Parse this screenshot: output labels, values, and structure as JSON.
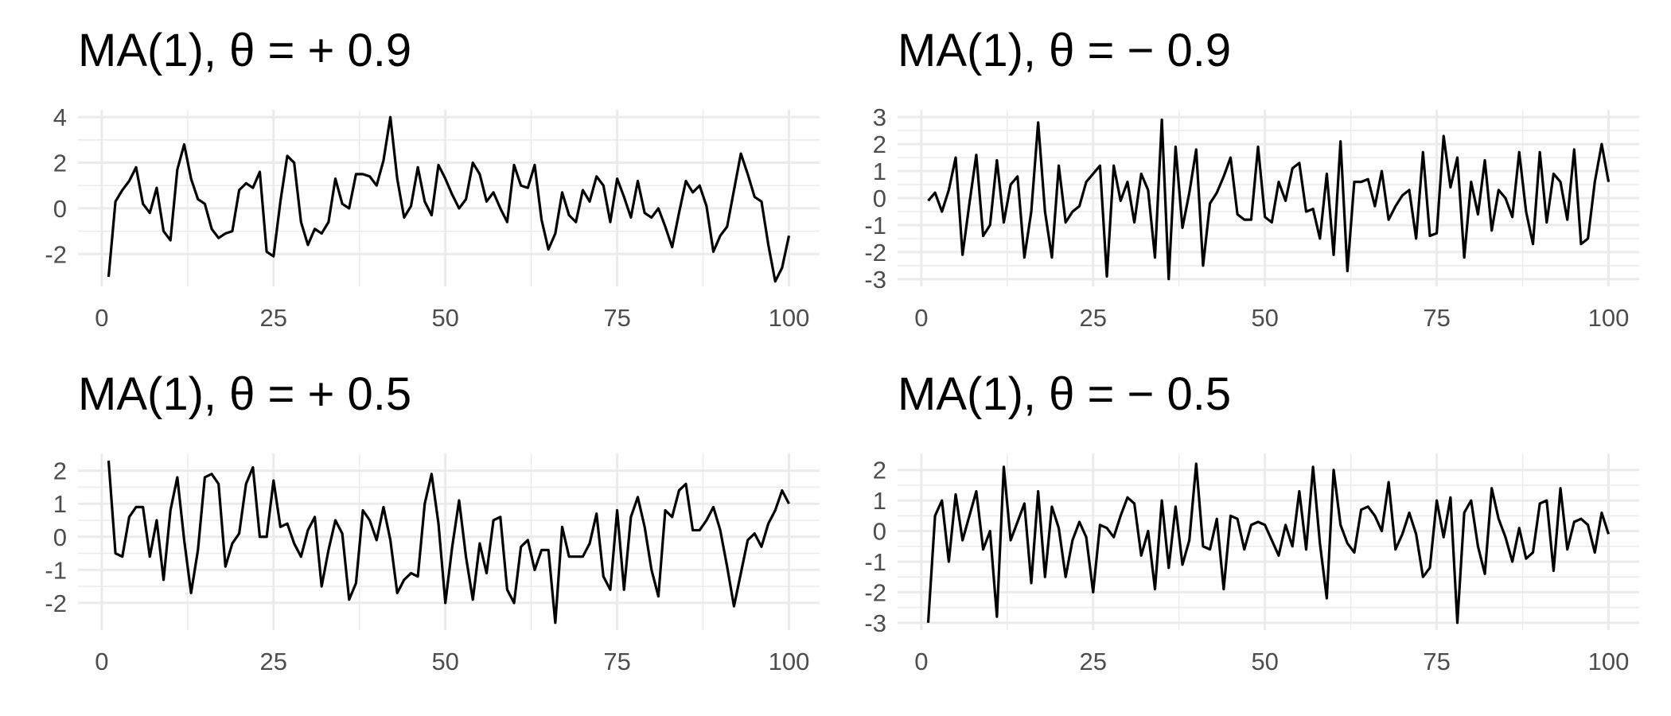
{
  "chart_data": [
    {
      "type": "line",
      "title": "MA(1), θ = + 0.9",
      "xlabel": "",
      "ylabel": "",
      "xlim": [
        1,
        100
      ],
      "ylim": [
        -3.1,
        4.0
      ],
      "x_ticks": [
        0,
        25,
        50,
        75,
        100
      ],
      "y_ticks": [
        -2,
        0,
        2,
        4
      ],
      "grid": true,
      "values": [
        -3.0,
        0.3,
        0.8,
        1.2,
        1.8,
        0.2,
        -0.2,
        0.9,
        -1.0,
        -1.4,
        1.7,
        2.8,
        1.3,
        0.4,
        0.2,
        -0.9,
        -1.3,
        -1.1,
        -1.0,
        0.8,
        1.1,
        0.9,
        1.6,
        -1.9,
        -2.1,
        0.3,
        2.3,
        2.0,
        -0.6,
        -1.6,
        -0.9,
        -1.1,
        -0.6,
        1.3,
        0.2,
        0.0,
        1.5,
        1.5,
        1.4,
        1.0,
        2.1,
        4.0,
        1.3,
        -0.4,
        0.1,
        1.8,
        0.3,
        -0.3,
        1.9,
        1.3,
        0.6,
        0.0,
        0.4,
        2.0,
        1.5,
        0.3,
        0.7,
        0.0,
        -0.6,
        1.9,
        1.0,
        0.9,
        1.9,
        -0.5,
        -1.8,
        -1.1,
        0.7,
        -0.3,
        -0.6,
        0.8,
        0.3,
        1.4,
        1.0,
        -0.6,
        1.3,
        0.5,
        -0.4,
        1.2,
        -0.2,
        -0.4,
        0.0,
        -0.8,
        -1.7,
        -0.2,
        1.2,
        0.7,
        1.0,
        0.1,
        -1.9,
        -1.2,
        -0.8,
        0.8,
        2.4,
        1.5,
        0.5,
        0.3,
        -1.6,
        -3.2,
        -2.6,
        -1.2
      ]
    },
    {
      "type": "line",
      "title": "MA(1), θ = − 0.9",
      "xlabel": "",
      "ylabel": "",
      "xlim": [
        1,
        100
      ],
      "ylim": [
        -3.0,
        3.0
      ],
      "x_ticks": [
        0,
        25,
        50,
        75,
        100
      ],
      "y_ticks": [
        -3,
        -2,
        -1,
        0,
        1,
        2,
        3
      ],
      "grid": true,
      "values": [
        -0.1,
        0.2,
        -0.5,
        0.3,
        1.5,
        -2.1,
        -0.2,
        1.6,
        -1.4,
        -1.0,
        1.4,
        -0.9,
        0.5,
        0.8,
        -2.2,
        -0.5,
        2.8,
        -0.5,
        -2.2,
        1.2,
        -0.9,
        -0.5,
        -0.3,
        0.6,
        0.9,
        1.2,
        -2.9,
        1.2,
        -0.1,
        0.6,
        -0.9,
        0.9,
        0.3,
        -2.2,
        2.9,
        -3.0,
        1.9,
        -1.1,
        0.2,
        1.8,
        -2.5,
        -0.2,
        0.2,
        0.8,
        1.5,
        -0.6,
        -0.8,
        -0.8,
        1.9,
        -0.7,
        -0.9,
        0.6,
        -0.1,
        1.1,
        1.3,
        -0.5,
        -0.4,
        -1.5,
        0.9,
        -2.1,
        2.1,
        -2.7,
        0.6,
        0.6,
        0.7,
        -0.3,
        1.0,
        -0.8,
        -0.3,
        0.1,
        0.3,
        -1.5,
        1.7,
        -1.4,
        -1.3,
        2.3,
        0.4,
        1.5,
        -2.2,
        0.6,
        -0.6,
        1.4,
        -1.2,
        0.3,
        0.0,
        -0.7,
        1.7,
        -0.5,
        -1.7,
        1.7,
        -0.9,
        0.9,
        0.6,
        -0.8,
        1.8,
        -1.7,
        -1.5,
        0.6,
        2.0,
        0.6
      ]
    },
    {
      "type": "line",
      "title": "MA(1), θ = + 0.5",
      "xlabel": "",
      "ylabel": "",
      "xlim": [
        1,
        100
      ],
      "ylim": [
        -2.6,
        2.3
      ],
      "x_ticks": [
        0,
        25,
        50,
        75,
        100
      ],
      "y_ticks": [
        -2,
        -1,
        0,
        1,
        2
      ],
      "grid": true,
      "values": [
        2.3,
        -0.5,
        -0.6,
        0.6,
        0.9,
        0.9,
        -0.6,
        0.5,
        -1.3,
        0.8,
        1.8,
        -0.1,
        -1.7,
        -0.4,
        1.8,
        1.9,
        1.6,
        -0.9,
        -0.2,
        0.1,
        1.6,
        2.1,
        0.0,
        0.0,
        1.7,
        0.3,
        0.4,
        -0.2,
        -0.6,
        0.2,
        0.6,
        -1.5,
        -0.4,
        0.5,
        0.1,
        -1.9,
        -1.4,
        0.8,
        0.5,
        -0.1,
        0.9,
        -0.1,
        -1.7,
        -1.3,
        -1.1,
        -1.2,
        1.0,
        1.9,
        0.4,
        -2.0,
        -0.3,
        1.1,
        -0.6,
        -1.9,
        -0.2,
        -1.1,
        0.5,
        0.6,
        -1.6,
        -2.0,
        -0.3,
        -0.1,
        -1.0,
        -0.4,
        -0.4,
        -2.6,
        0.3,
        -0.6,
        -0.6,
        -0.6,
        -0.2,
        0.7,
        -1.2,
        -1.6,
        0.8,
        -1.6,
        0.6,
        1.2,
        0.3,
        -1.0,
        -1.8,
        0.8,
        0.6,
        1.4,
        1.6,
        0.2,
        0.2,
        0.5,
        0.9,
        0.2,
        -0.9,
        -2.1,
        -1.1,
        -0.1,
        0.1,
        -0.3,
        0.4,
        0.8,
        1.4,
        1.0
      ]
    },
    {
      "type": "line",
      "title": "MA(1), θ = − 0.5",
      "xlabel": "",
      "ylabel": "",
      "xlim": [
        1,
        100
      ],
      "ylim": [
        -3.0,
        2.3
      ],
      "x_ticks": [
        0,
        25,
        50,
        75,
        100
      ],
      "y_ticks": [
        -3,
        -2,
        -1,
        0,
        1,
        2
      ],
      "grid": true,
      "values": [
        -3.0,
        0.5,
        1.0,
        -1.0,
        1.2,
        -0.3,
        0.5,
        1.3,
        -0.6,
        0.0,
        -2.8,
        2.1,
        -0.3,
        0.3,
        0.9,
        -1.7,
        1.3,
        -1.5,
        0.8,
        0.1,
        -1.5,
        -0.3,
        0.3,
        -0.2,
        -2.0,
        0.2,
        0.1,
        -0.2,
        0.5,
        1.1,
        0.9,
        -0.8,
        0.0,
        -1.9,
        1.0,
        -1.2,
        0.8,
        -1.1,
        -0.3,
        2.2,
        -0.5,
        -0.6,
        0.4,
        -1.9,
        0.5,
        0.4,
        -0.6,
        0.2,
        0.3,
        0.2,
        -0.3,
        -0.8,
        0.2,
        -0.5,
        1.3,
        -0.6,
        2.1,
        -0.4,
        -2.2,
        2.0,
        0.2,
        -0.4,
        -0.7,
        0.7,
        0.8,
        0.5,
        0.0,
        1.6,
        -0.6,
        -0.1,
        0.6,
        -0.1,
        -1.5,
        -1.2,
        1.0,
        -0.2,
        1.1,
        -3.0,
        0.6,
        1.0,
        -0.5,
        -1.4,
        1.4,
        0.4,
        -0.2,
        -1.0,
        0.1,
        -0.9,
        -0.7,
        0.9,
        1.0,
        -1.3,
        1.4,
        -0.6,
        0.3,
        0.4,
        0.2,
        -0.7,
        0.6,
        -0.1
      ]
    }
  ]
}
